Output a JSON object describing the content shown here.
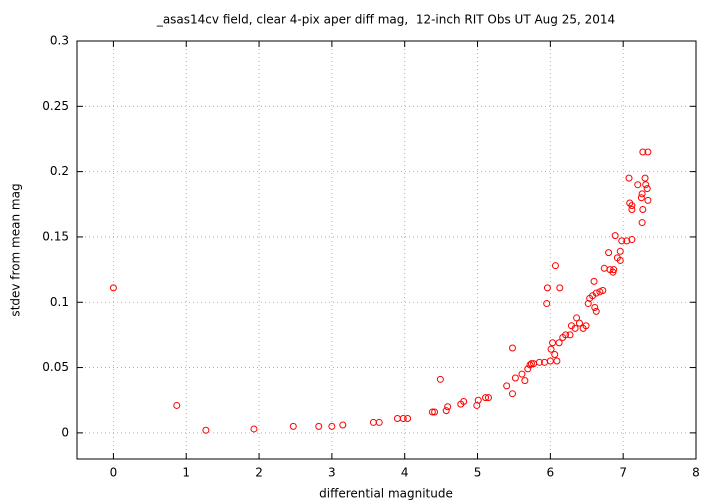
{
  "chart_data": {
    "type": "scatter",
    "title": "_asas14cv field, clear 4-pix aper diff mag,  12-inch RIT Obs UT Aug 25, 2014",
    "x_label": "differential magnitude",
    "y_label": "stdev from mean mag",
    "color": "#ff0000",
    "grid": true,
    "xlim": [
      -0.5,
      8
    ],
    "xticks": [
      0,
      1,
      2,
      3,
      4,
      5,
      6,
      7,
      8
    ],
    "ylim": [
      -0.02,
      0.3
    ],
    "yticks": [
      0,
      0.05,
      0.1,
      0.15,
      0.2,
      0.25,
      0.3
    ],
    "x": [
      0,
      0.87,
      1.27,
      1.93,
      2.47,
      2.82,
      3.0,
      3.15,
      3.57,
      3.65,
      3.9,
      3.98,
      4.04,
      4.38,
      4.41,
      4.49,
      4.57,
      4.59,
      4.77,
      4.81,
      4.99,
      5.01,
      5.11,
      5.15,
      5.4,
      5.48,
      5.48,
      5.52,
      5.61,
      5.65,
      5.69,
      5.72,
      5.74,
      5.77,
      5.85,
      5.92,
      5.96,
      5.95,
      6.0,
      6.01,
      6.03,
      6.07,
      6.09,
      6.06,
      6.13,
      6.12,
      6.17,
      6.21,
      6.27,
      6.29,
      6.34,
      6.36,
      6.4,
      6.45,
      6.49,
      6.52,
      6.54,
      6.58,
      6.61,
      6.63,
      6.6,
      6.63,
      6.68,
      6.72,
      6.74,
      6.82,
      6.8,
      6.86,
      6.87,
      6.89,
      6.92,
      6.96,
      6.96,
      6.98,
      7.05,
      7.08,
      7.09,
      7.12,
      7.12,
      7.12,
      7.2,
      7.25,
      7.27,
      7.26,
      7.27,
      7.34,
      7.3,
      7.31,
      7.33,
      7.34,
      7.26
    ],
    "values": [
      0.111,
      0.021,
      0.002,
      0.003,
      0.005,
      0.005,
      0.005,
      0.006,
      0.008,
      0.008,
      0.011,
      0.011,
      0.011,
      0.016,
      0.016,
      0.041,
      0.017,
      0.02,
      0.022,
      0.024,
      0.021,
      0.025,
      0.027,
      0.027,
      0.036,
      0.065,
      0.03,
      0.042,
      0.045,
      0.04,
      0.049,
      0.052,
      0.053,
      0.053,
      0.054,
      0.054,
      0.111,
      0.099,
      0.055,
      0.064,
      0.069,
      0.128,
      0.055,
      0.06,
      0.111,
      0.069,
      0.073,
      0.075,
      0.075,
      0.082,
      0.08,
      0.088,
      0.084,
      0.08,
      0.082,
      0.099,
      0.103,
      0.105,
      0.096,
      0.093,
      0.116,
      0.107,
      0.108,
      0.109,
      0.126,
      0.125,
      0.138,
      0.123,
      0.125,
      0.151,
      0.134,
      0.139,
      0.132,
      0.147,
      0.147,
      0.195,
      0.176,
      0.174,
      0.171,
      0.148,
      0.19,
      0.18,
      0.171,
      0.183,
      0.215,
      0.215,
      0.195,
      0.19,
      0.187,
      0.178,
      0.161
    ]
  }
}
